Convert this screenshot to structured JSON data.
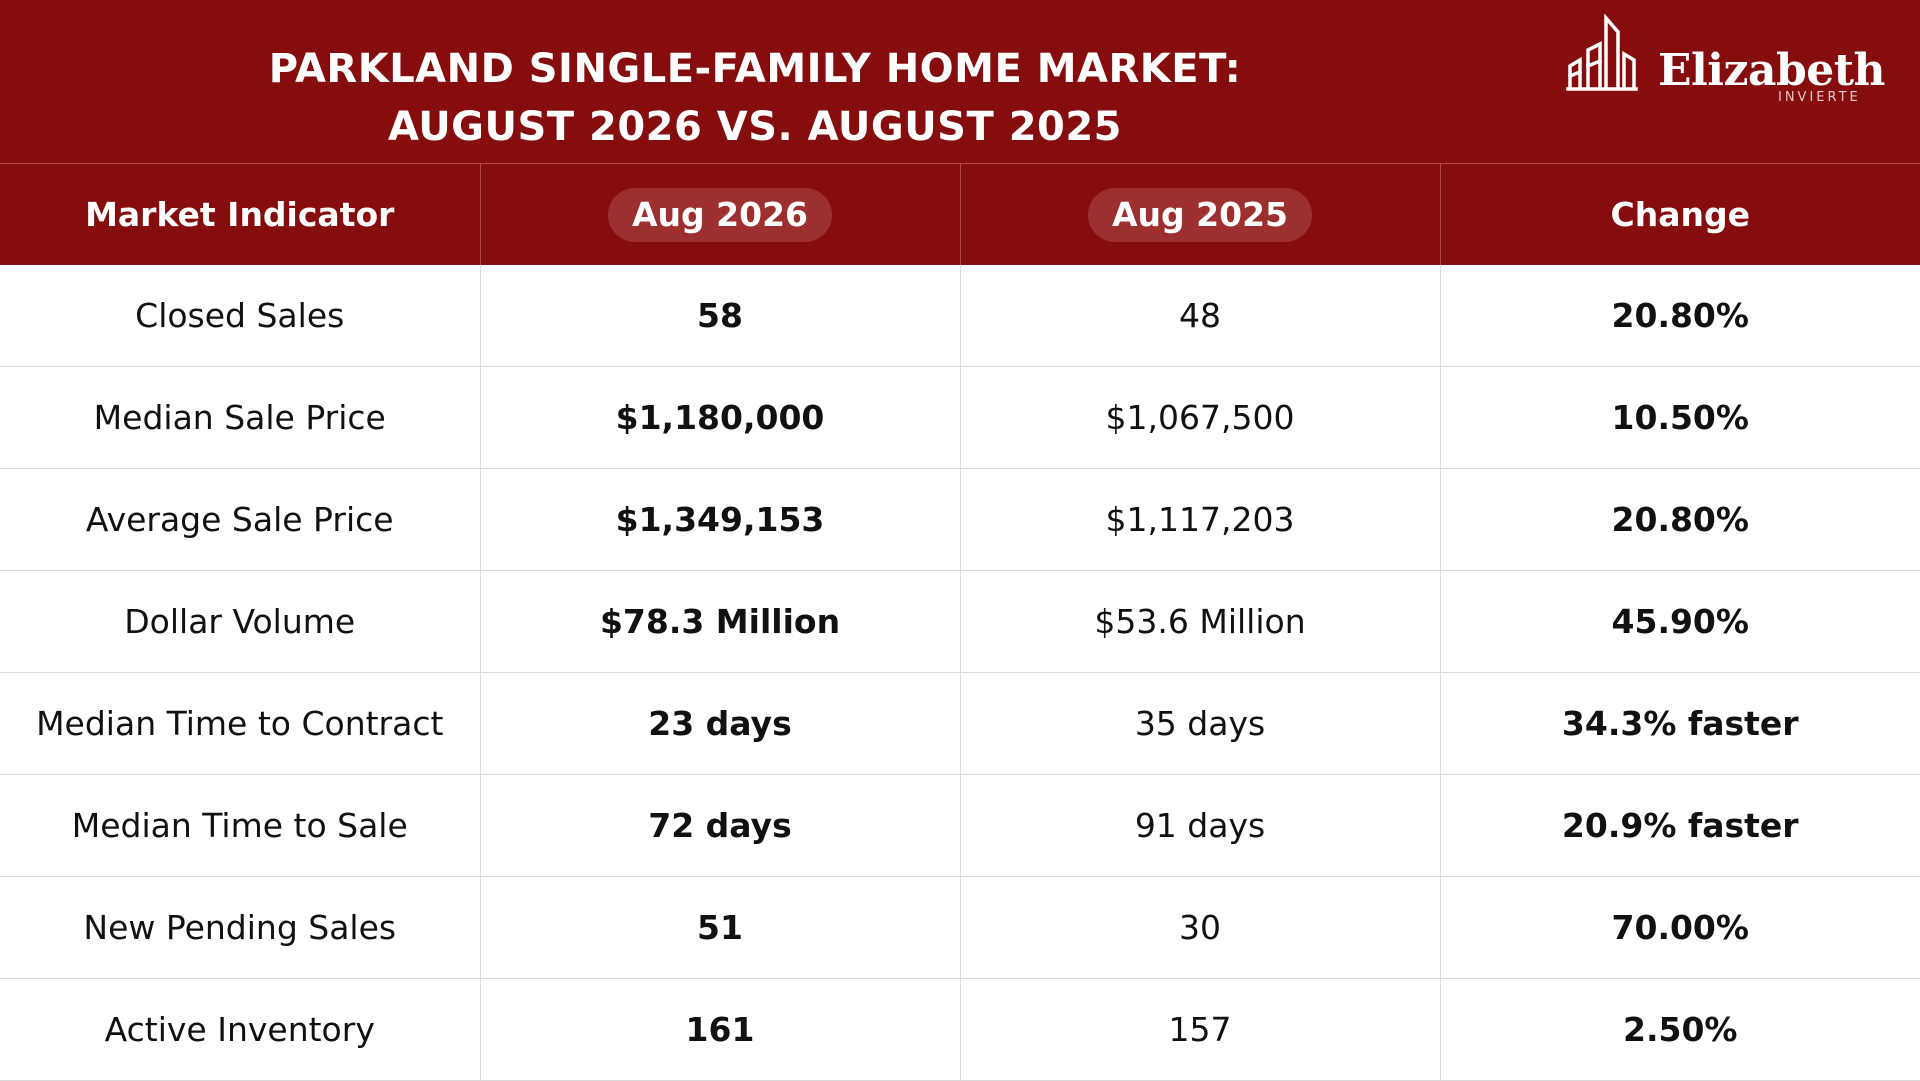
{
  "title": {
    "line1": "PARKLAND SINGLE-FAMILY HOME MARKET:",
    "line2": "AUGUST 2026 VS. AUGUST 2025"
  },
  "logo": {
    "name": "Elizabeth",
    "subtitle": "INVIERTE",
    "icon": "buildings-icon"
  },
  "table": {
    "headers": [
      "Market Indicator",
      "Aug 2026",
      "Aug 2025",
      "Change"
    ],
    "rows": [
      {
        "indicator": "Closed Sales",
        "aug2026": "58",
        "aug2025": "48",
        "change": "20.80%"
      },
      {
        "indicator": "Median Sale Price",
        "aug2026": "$1,180,000",
        "aug2025": "$1,067,500",
        "change": "10.50%"
      },
      {
        "indicator": "Average Sale Price",
        "aug2026": "$1,349,153",
        "aug2025": "$1,117,203",
        "change": "20.80%"
      },
      {
        "indicator": "Dollar Volume",
        "aug2026": "$78.3 Million",
        "aug2025": "$53.6 Million",
        "change": "45.90%"
      },
      {
        "indicator": "Median Time to Contract",
        "aug2026": "23 days",
        "aug2025": "35 days",
        "change": "34.3% faster"
      },
      {
        "indicator": "Median Time to Sale",
        "aug2026": "72 days",
        "aug2025": "91 days",
        "change": "20.9% faster"
      },
      {
        "indicator": "New Pending Sales",
        "aug2026": "51",
        "aug2025": "30",
        "change": "70.00%"
      },
      {
        "indicator": "Active Inventory",
        "aug2026": "161",
        "aug2025": "157",
        "change": "2.50%"
      }
    ]
  },
  "colors": {
    "banner": "#850d0d",
    "pill": "#9d2f2f",
    "text": "#111111",
    "grid": "#d9d9d9"
  }
}
